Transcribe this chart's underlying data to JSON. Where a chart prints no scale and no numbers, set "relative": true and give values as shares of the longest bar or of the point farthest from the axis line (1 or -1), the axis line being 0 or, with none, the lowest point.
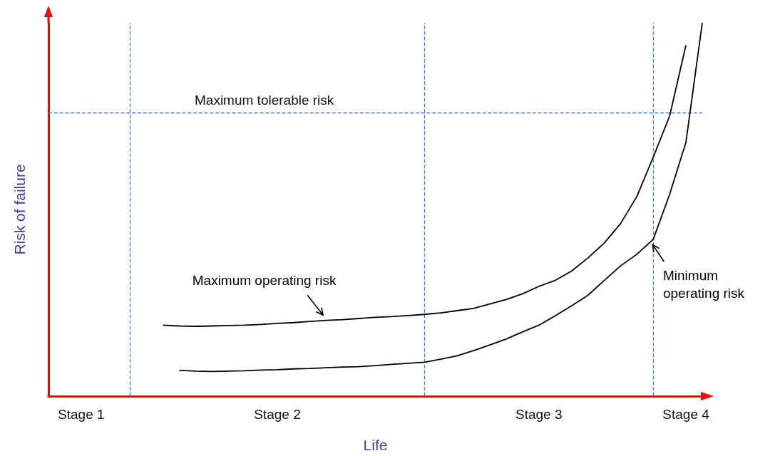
{
  "chart_data": {
    "type": "line",
    "relative": true,
    "xlabel": "Life",
    "ylabel": "Risk of failure",
    "tick_labels": "x",
    "categories": [
      null,
      null,
      "Stage 1",
      null,
      null,
      null,
      null,
      null,
      null,
      null,
      null,
      null,
      null,
      null,
      "Stage 2",
      null,
      null,
      null,
      null,
      null,
      null,
      null,
      null,
      null,
      null,
      null,
      null,
      null,
      null,
      null,
      "Stage 3",
      null,
      null,
      null,
      null,
      null,
      null,
      null,
      null,
      "Stage 4",
      null
    ],
    "series": [
      {
        "name": "Maximum operating risk",
        "color": "#000000",
        "values": [
          null,
          null,
          null,
          null,
          null,
          null,
          null,
          0.19,
          0.188,
          0.187,
          0.188,
          0.189,
          0.19,
          0.192,
          0.195,
          0.197,
          0.2,
          0.203,
          0.205,
          0.208,
          0.211,
          0.213,
          0.216,
          0.219,
          0.223,
          0.229,
          0.235,
          0.247,
          0.259,
          0.274,
          0.294,
          0.31,
          0.335,
          0.37,
          0.41,
          0.462,
          0.535,
          0.64,
          0.75,
          0.94,
          null
        ]
      },
      {
        "name": "Minimum operating risk",
        "color": "#000000",
        "values": [
          null,
          null,
          null,
          null,
          null,
          null,
          null,
          null,
          0.069,
          0.067,
          0.066,
          0.067,
          0.068,
          0.07,
          0.071,
          0.073,
          0.074,
          0.076,
          0.078,
          0.079,
          0.082,
          0.085,
          0.088,
          0.091,
          0.099,
          0.108,
          0.122,
          0.137,
          0.153,
          0.172,
          0.19,
          0.215,
          0.242,
          0.27,
          0.31,
          0.349,
          0.38,
          0.42,
          0.54,
          0.68,
          1.0
        ]
      }
    ],
    "ref_lines": [
      {
        "axis": "y",
        "value": 0.755,
        "label": "Maximum tolerable risk",
        "color": "#4a7fc1",
        "line_style": "dashed"
      }
    ],
    "grid": "x"
  }
}
